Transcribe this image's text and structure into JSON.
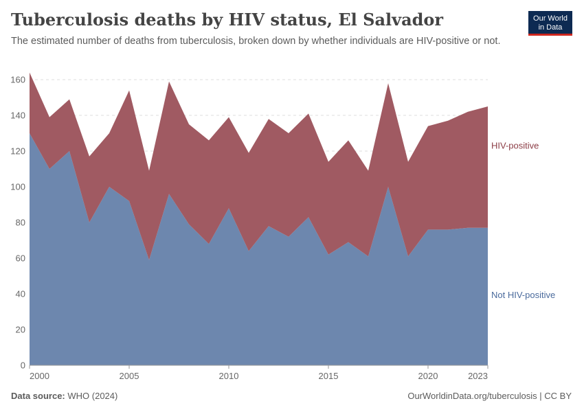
{
  "header": {
    "title": "Tuberculosis deaths by HIV status, El Salvador",
    "subtitle": "The estimated number of deaths from tuberculosis, broken down by whether individuals are HIV-positive or not.",
    "logo_line1": "Our World",
    "logo_line2": "in Data"
  },
  "footer": {
    "source_label": "Data source:",
    "source_value": "WHO (2024)",
    "url": "OurWorldinData.org/tuberculosis | CC BY"
  },
  "colors": {
    "not_hiv": "#6d87ae",
    "hiv": "#a05a62",
    "not_hiv_label": "#4a6a9c",
    "hiv_label": "#8c3d46",
    "grid": "#dddddd"
  },
  "chart_data": {
    "type": "area",
    "stacked": true,
    "title": "Tuberculosis deaths by HIV status, El Salvador",
    "x": [
      2000,
      2001,
      2002,
      2003,
      2004,
      2005,
      2006,
      2007,
      2008,
      2009,
      2010,
      2011,
      2012,
      2013,
      2014,
      2015,
      2016,
      2017,
      2018,
      2019,
      2020,
      2021,
      2022,
      2023
    ],
    "x_tick_labels": [
      "2000",
      "2005",
      "2010",
      "2015",
      "2020",
      "2023"
    ],
    "x_ticks": [
      2000,
      2005,
      2010,
      2015,
      2020,
      2023
    ],
    "y_ticks": [
      0,
      20,
      40,
      60,
      80,
      100,
      120,
      140,
      160
    ],
    "ylim": [
      0,
      165
    ],
    "xlim": [
      2000,
      2023
    ],
    "grid": "horizontal-dashed",
    "series": [
      {
        "name": "Not HIV-positive",
        "values": [
          130,
          110,
          120,
          80,
          100,
          92,
          59,
          96,
          79,
          68,
          88,
          64,
          78,
          72,
          83,
          62,
          69,
          61,
          100,
          61,
          76,
          76,
          77,
          77
        ]
      },
      {
        "name": "HIV-positive",
        "values": [
          34,
          29,
          29,
          37,
          30,
          62,
          50,
          63,
          56,
          58,
          51,
          55,
          60,
          58,
          58,
          52,
          57,
          48,
          58,
          53,
          58,
          61,
          65,
          68
        ]
      }
    ]
  }
}
